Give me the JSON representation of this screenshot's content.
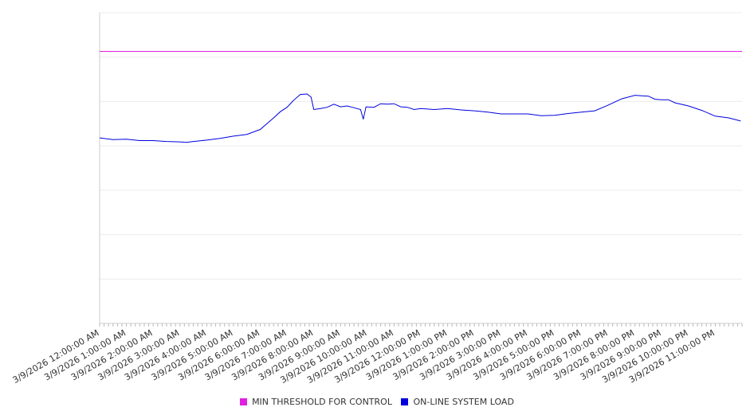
{
  "chart_data": {
    "type": "line",
    "title": "",
    "xlabel": "",
    "ylabel": "",
    "ylim": [
      0,
      7
    ],
    "y_gridlines": 7,
    "grid": true,
    "legend_position": "bottom",
    "categories": [
      "3/9/2026 12:00:00 AM",
      "3/9/2026 1:00:00 AM",
      "3/9/2026 2:00:00 AM",
      "3/9/2026 3:00:00 AM",
      "3/9/2026 4:00:00 AM",
      "3/9/2026 5:00:00 AM",
      "3/9/2026 6:00:00 AM",
      "3/9/2026 7:00:00 AM",
      "3/9/2026 8:00:00 AM",
      "3/9/2026 9:00:00 AM",
      "3/9/2026 10:00:00 AM",
      "3/9/2026 11:00:00 AM",
      "3/9/2026 12:00:00 PM",
      "3/9/2026 1:00:00 PM",
      "3/9/2026 2:00:00 PM",
      "3/9/2026 3:00:00 PM",
      "3/9/2026 4:00:00 PM",
      "3/9/2026 5:00:00 PM",
      "3/9/2026 6:00:00 PM",
      "3/9/2026 7:00:00 PM",
      "3/9/2026 8:00:00 PM",
      "3/9/2026 9:00:00 PM",
      "3/9/2026 10:00:00 PM",
      "3/9/2026 11:00:00 PM"
    ],
    "series": [
      {
        "name": "MIN THRESHOLD FOR CONTROL",
        "color": "#e020e0",
        "x": [
          0,
          24
        ],
        "values": [
          6.13,
          6.13
        ]
      },
      {
        "name": "ON-LINE SYSTEM LOAD",
        "color": "#0000dd",
        "x": [
          0,
          0.5,
          1,
          1.5,
          2,
          2.5,
          3,
          3.25,
          3.5,
          4,
          4.5,
          5,
          5.5,
          6,
          6.25,
          6.5,
          6.75,
          7,
          7.25,
          7.5,
          7.75,
          7.9,
          8,
          8.25,
          8.5,
          8.75,
          9,
          9.25,
          9.5,
          9.75,
          9.85,
          9.95,
          10.25,
          10.5,
          10.75,
          11,
          11.25,
          11.5,
          11.75,
          12,
          12.5,
          13,
          13.5,
          14,
          14.5,
          15,
          15.5,
          16,
          16.5,
          17,
          17.5,
          18,
          18.5,
          19,
          19.5,
          20,
          20.25,
          20.5,
          20.75,
          21,
          21.25,
          21.5,
          22,
          22.5,
          23,
          23.5,
          23.95
        ],
        "values": [
          4.18,
          4.14,
          4.15,
          4.12,
          4.12,
          4.1,
          4.09,
          4.08,
          4.1,
          4.13,
          4.17,
          4.22,
          4.26,
          4.37,
          4.5,
          4.63,
          4.77,
          4.87,
          5.03,
          5.16,
          5.17,
          5.1,
          4.82,
          4.84,
          4.87,
          4.94,
          4.88,
          4.9,
          4.86,
          4.82,
          4.6,
          4.88,
          4.87,
          4.95,
          4.94,
          4.95,
          4.88,
          4.87,
          4.82,
          4.84,
          4.82,
          4.84,
          4.81,
          4.79,
          4.76,
          4.72,
          4.72,
          4.72,
          4.68,
          4.69,
          4.73,
          4.76,
          4.79,
          4.92,
          5.06,
          5.14,
          5.13,
          5.12,
          5.05,
          5.04,
          5.04,
          4.97,
          4.9,
          4.8,
          4.67,
          4.63,
          4.56
        ]
      }
    ]
  }
}
